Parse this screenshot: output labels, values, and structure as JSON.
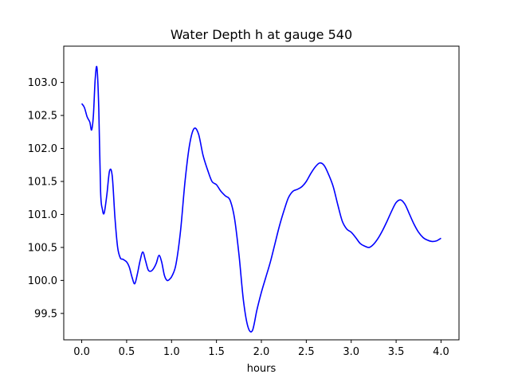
{
  "chart_data": {
    "type": "line",
    "title": "Water Depth h at gauge 540",
    "xlabel": "hours",
    "ylabel": "",
    "xlim": [
      -0.2,
      4.2
    ],
    "ylim": [
      99.1,
      103.55
    ],
    "x_ticks": [
      0.0,
      0.5,
      1.0,
      1.5,
      2.0,
      2.5,
      3.0,
      3.5,
      4.0
    ],
    "x_tick_labels": [
      "0.0",
      "0.5",
      "1.0",
      "1.5",
      "2.0",
      "2.5",
      "3.0",
      "3.5",
      "4.0"
    ],
    "y_ticks": [
      99.5,
      100.0,
      100.5,
      101.0,
      101.5,
      102.0,
      102.5,
      103.0
    ],
    "y_tick_labels": [
      "99.5",
      "100.0",
      "100.5",
      "101.0",
      "101.5",
      "102.0",
      "102.5",
      "103.0"
    ],
    "grid": false,
    "legend": "none",
    "series": [
      {
        "color": "#0000ff",
        "x": [
          0.0,
          0.03,
          0.06,
          0.09,
          0.11,
          0.13,
          0.15,
          0.17,
          0.19,
          0.21,
          0.23,
          0.25,
          0.28,
          0.31,
          0.34,
          0.37,
          0.4,
          0.43,
          0.46,
          0.5,
          0.53,
          0.56,
          0.59,
          0.62,
          0.65,
          0.68,
          0.71,
          0.74,
          0.77,
          0.8,
          0.83,
          0.86,
          0.89,
          0.92,
          0.95,
          0.98,
          1.01,
          1.05,
          1.1,
          1.15,
          1.2,
          1.25,
          1.3,
          1.35,
          1.4,
          1.45,
          1.5,
          1.55,
          1.6,
          1.65,
          1.7,
          1.75,
          1.8,
          1.85,
          1.9,
          1.95,
          2.0,
          2.05,
          2.1,
          2.15,
          2.2,
          2.25,
          2.3,
          2.35,
          2.4,
          2.45,
          2.5,
          2.55,
          2.6,
          2.65,
          2.7,
          2.75,
          2.8,
          2.85,
          2.9,
          2.95,
          3.0,
          3.05,
          3.1,
          3.15,
          3.2,
          3.25,
          3.3,
          3.35,
          3.4,
          3.45,
          3.5,
          3.55,
          3.6,
          3.65,
          3.7,
          3.75,
          3.8,
          3.85,
          3.9,
          3.95,
          4.0
        ],
        "values": [
          102.68,
          102.62,
          102.48,
          102.4,
          102.28,
          102.5,
          103.05,
          103.22,
          102.6,
          101.35,
          101.08,
          101.02,
          101.3,
          101.66,
          101.58,
          100.95,
          100.5,
          100.34,
          100.32,
          100.28,
          100.2,
          100.05,
          99.95,
          100.1,
          100.3,
          100.43,
          100.3,
          100.16,
          100.14,
          100.18,
          100.26,
          100.38,
          100.28,
          100.08,
          100.0,
          100.02,
          100.08,
          100.25,
          100.75,
          101.5,
          102.05,
          102.3,
          102.22,
          101.9,
          101.68,
          101.5,
          101.45,
          101.35,
          101.28,
          101.22,
          100.95,
          100.4,
          99.7,
          99.3,
          99.24,
          99.55,
          99.82,
          100.05,
          100.28,
          100.55,
          100.82,
          101.05,
          101.25,
          101.35,
          101.38,
          101.42,
          101.5,
          101.62,
          101.72,
          101.78,
          101.74,
          101.6,
          101.42,
          101.15,
          100.9,
          100.78,
          100.73,
          100.65,
          100.56,
          100.52,
          100.5,
          100.55,
          100.64,
          100.76,
          100.9,
          101.05,
          101.18,
          101.22,
          101.15,
          101.0,
          100.85,
          100.73,
          100.65,
          100.61,
          100.59,
          100.6,
          100.64
        ]
      }
    ]
  }
}
